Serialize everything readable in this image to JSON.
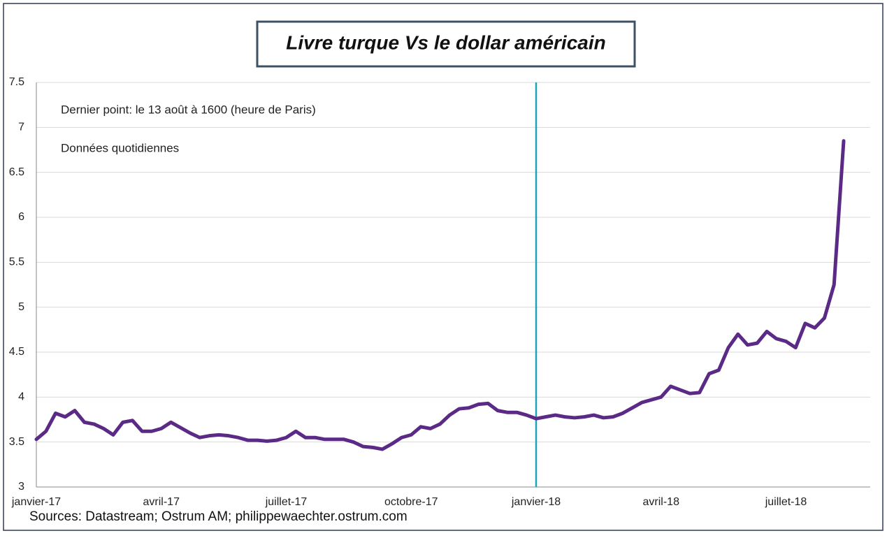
{
  "chart_data": {
    "type": "line",
    "title": "Livre turque Vs le dollar américain",
    "annotations": [
      "Dernier point: le 13 août à 1600  (heure de Paris)",
      "Données quotidiennes"
    ],
    "source": "Sources: Datastream; Ostrum AM; philippewaechter.ostrum.com",
    "categories": [
      "janvier-17",
      null,
      null,
      null,
      null,
      null,
      null,
      null,
      null,
      null,
      null,
      null,
      null,
      "avril-17",
      null,
      null,
      null,
      null,
      null,
      null,
      null,
      null,
      null,
      null,
      null,
      null,
      "juillet-17",
      null,
      null,
      null,
      null,
      null,
      null,
      null,
      null,
      null,
      null,
      null,
      null,
      "octobre-17",
      null,
      null,
      null,
      null,
      null,
      null,
      null,
      null,
      null,
      null,
      null,
      null,
      "janvier-18",
      null,
      null,
      null,
      null,
      null,
      null,
      null,
      null,
      null,
      null,
      null,
      null,
      "avril-18",
      null,
      null,
      null,
      null,
      null,
      null,
      null,
      null,
      null,
      null,
      null,
      null,
      "juillet-18",
      null,
      null,
      null,
      null,
      null,
      null
    ],
    "values": [
      3.53,
      3.62,
      3.82,
      3.78,
      3.85,
      3.72,
      3.7,
      3.65,
      3.58,
      3.72,
      3.74,
      3.62,
      3.62,
      3.65,
      3.72,
      3.66,
      3.6,
      3.55,
      3.57,
      3.58,
      3.57,
      3.55,
      3.52,
      3.52,
      3.51,
      3.52,
      3.55,
      3.62,
      3.55,
      3.55,
      3.53,
      3.53,
      3.53,
      3.5,
      3.45,
      3.44,
      3.42,
      3.48,
      3.55,
      3.58,
      3.67,
      3.65,
      3.7,
      3.8,
      3.87,
      3.88,
      3.92,
      3.93,
      3.85,
      3.83,
      3.83,
      3.8,
      3.76,
      3.78,
      3.8,
      3.78,
      3.77,
      3.78,
      3.8,
      3.77,
      3.78,
      3.82,
      3.88,
      3.94,
      3.97,
      4.0,
      4.12,
      4.08,
      4.04,
      4.05,
      4.26,
      4.3,
      4.55,
      4.7,
      4.58,
      4.6,
      4.73,
      4.65,
      4.62,
      4.55,
      4.82,
      4.77,
      4.88,
      5.25,
      6.85
    ],
    "color": "#5b2a86",
    "ylim": [
      3,
      7.5
    ],
    "yticks": [
      3,
      3.5,
      4,
      4.5,
      5,
      5.5,
      6,
      6.5,
      7,
      7.5
    ],
    "grid": true
  }
}
